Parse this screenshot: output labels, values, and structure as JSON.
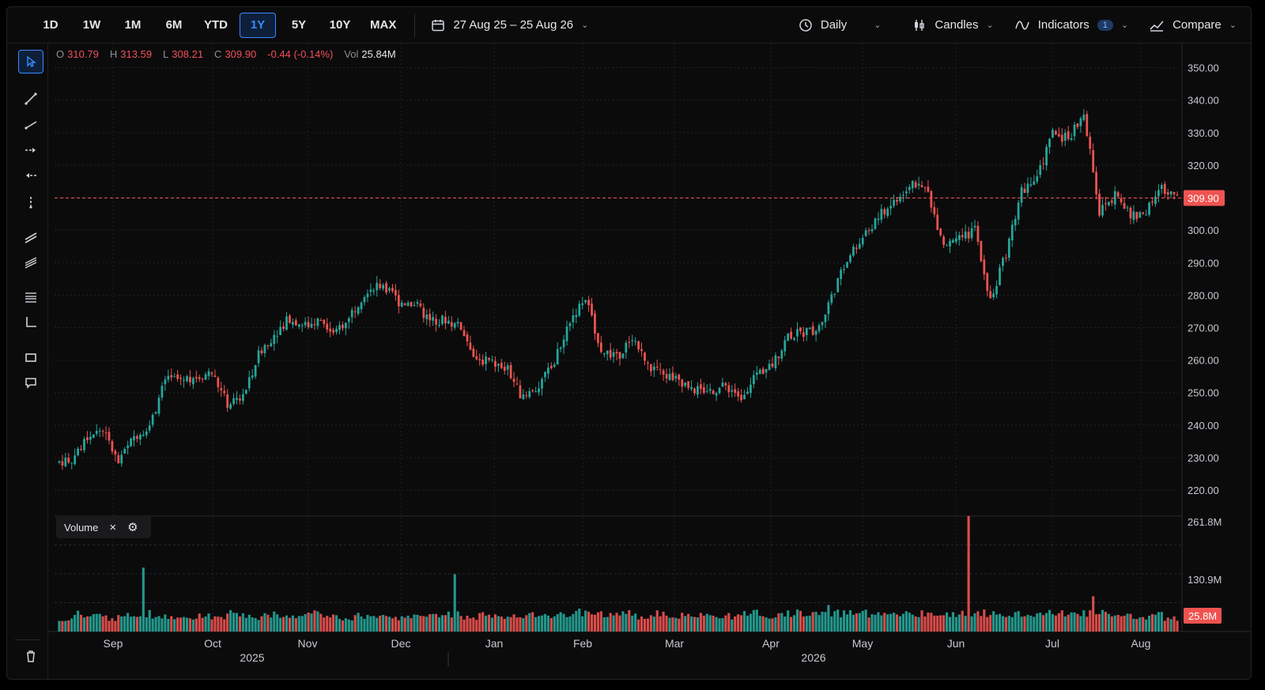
{
  "toolbar": {
    "timeframes": [
      "1D",
      "1W",
      "1M",
      "6M",
      "YTD",
      "1Y",
      "5Y",
      "10Y",
      "MAX"
    ],
    "active_timeframe": "1Y",
    "date_range": "27 Aug 25 – 25 Aug 26",
    "interval": "Daily",
    "chart_style": "Candles",
    "indicators_label": "Indicators",
    "indicators_count": "1",
    "compare_label": "Compare"
  },
  "legend": {
    "open_label": "O",
    "open": "310.79",
    "high_label": "H",
    "high": "313.59",
    "low_label": "L",
    "low": "308.21",
    "close_label": "C",
    "close": "309.90",
    "change": "-0.44 (-0.14%)",
    "vol_label": "Vol",
    "volume": "25.84M"
  },
  "volume_pane": {
    "label": "Volume"
  },
  "price_axis": [
    "350.00",
    "340.00",
    "330.00",
    "320.00",
    "310.00",
    "300.00",
    "290.00",
    "280.00",
    "270.00",
    "260.00",
    "250.00",
    "240.00",
    "230.00",
    "220.00"
  ],
  "volume_axis": [
    "261.8M",
    "130.9M"
  ],
  "current_price_tag": "309.90",
  "current_volume_tag": "25.8M",
  "time_axis": {
    "months": [
      "Sep",
      "Oct",
      "Nov",
      "Dec",
      "Jan",
      "Feb",
      "Mar",
      "Apr",
      "May",
      "Jun",
      "Jul",
      "Aug"
    ],
    "years": [
      "2025",
      "2026"
    ]
  },
  "colors": {
    "up": "#26a69a",
    "down": "#ef5350",
    "accent": "#3b8bff",
    "price_line": "#ef5350"
  },
  "chart_data": {
    "type": "candlestick",
    "y_range": [
      212,
      355
    ],
    "volume_range": [
      0,
      261.8
    ],
    "last_close": 309.9,
    "closes_weekly": [
      229.5,
      236.2,
      238.8,
      228.0,
      236.5,
      240.0,
      253.5,
      254.2,
      255.0,
      256.0,
      246.5,
      248.5,
      262.0,
      268.0,
      273.0,
      270.5,
      272.5,
      268.5,
      275.0,
      282.0,
      283.5,
      278.0,
      277.5,
      272.0,
      272.5,
      270.0,
      260.5,
      259.0,
      257.0,
      248.0,
      252.0,
      259.5,
      272.5,
      279.0,
      263.5,
      260.5,
      267.5,
      258.0,
      255.5,
      254.0,
      251.0,
      250.5,
      252.0,
      249.0,
      256.0,
      258.5,
      267.5,
      268.5,
      270.0,
      282.0,
      293.0,
      299.0,
      305.0,
      310.0,
      315.0,
      311.5,
      295.0,
      297.0,
      300.0,
      278.0,
      293.0,
      312.0,
      316.0,
      330.0,
      328.0,
      336.5,
      305.5,
      311.0,
      304.0,
      305.5,
      313.0,
      311.5
    ],
    "volumes_weekly": [
      24,
      38,
      40,
      30,
      42,
      145,
      35,
      28,
      30,
      34,
      33,
      42,
      32,
      38,
      33,
      35,
      48,
      32,
      30,
      34,
      31,
      30,
      36,
      35,
      32,
      130,
      30,
      36,
      34,
      32,
      44,
      36,
      40,
      52,
      38,
      42,
      40,
      34,
      48,
      32,
      40,
      36,
      30,
      34,
      40,
      32,
      42,
      50,
      44,
      60,
      48,
      42,
      38,
      40,
      46,
      48,
      36,
      44,
      262,
      50,
      40,
      44,
      36,
      42,
      48,
      40,
      80,
      40,
      36,
      32,
      38,
      28
    ]
  }
}
